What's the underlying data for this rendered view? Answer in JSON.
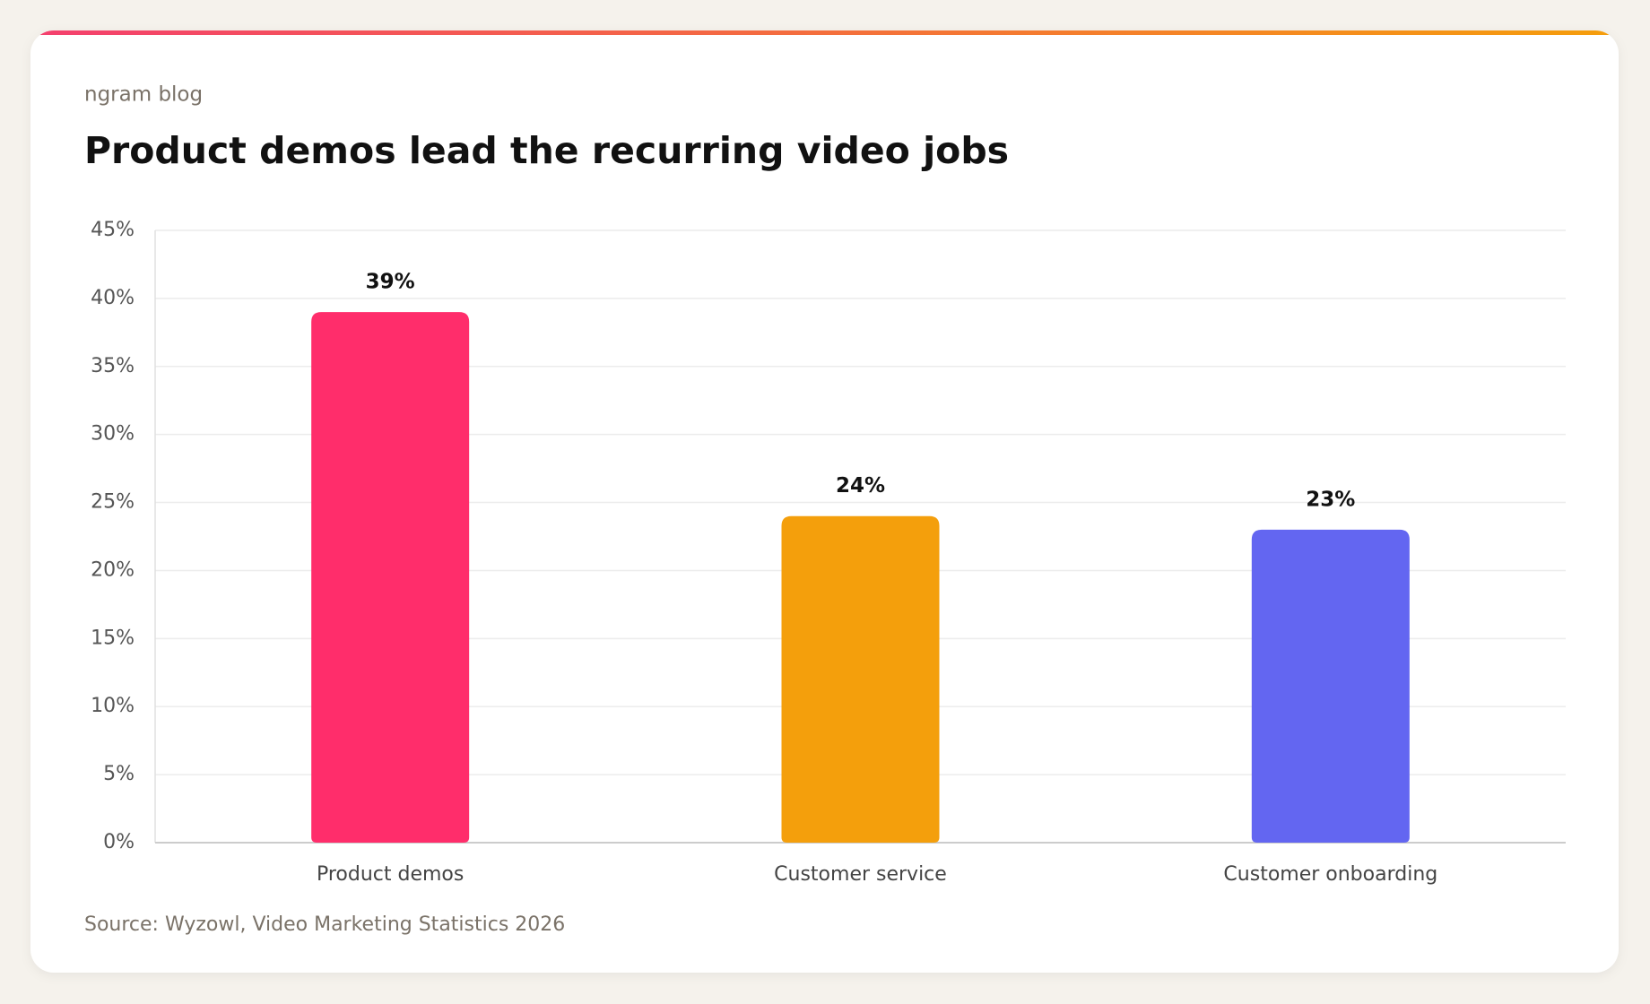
{
  "brand": "ngram blog",
  "chart_data": {
    "type": "bar",
    "title": "Product demos lead the recurring video jobs",
    "categories": [
      "Product demos",
      "Customer service",
      "Customer onboarding"
    ],
    "values": [
      39,
      24,
      23
    ],
    "value_labels": [
      "39%",
      "24%",
      "23%"
    ],
    "colors": [
      "#ff2d6b",
      "#f49f0c",
      "#6366f1"
    ],
    "ylim": [
      0,
      45
    ],
    "yticks": [
      {
        "value": 0,
        "label": "0%"
      },
      {
        "value": 5,
        "label": "5%"
      },
      {
        "value": 10,
        "label": "10%"
      },
      {
        "value": 15,
        "label": "15%"
      },
      {
        "value": 20,
        "label": "20%"
      },
      {
        "value": 25,
        "label": "25%"
      },
      {
        "value": 30,
        "label": "30%"
      },
      {
        "value": 35,
        "label": "35%"
      },
      {
        "value": 40,
        "label": "40%"
      },
      {
        "value": 45,
        "label": "45%"
      }
    ],
    "grid": true
  },
  "source": "Source: Wyzowl, Video Marketing Statistics 2026"
}
